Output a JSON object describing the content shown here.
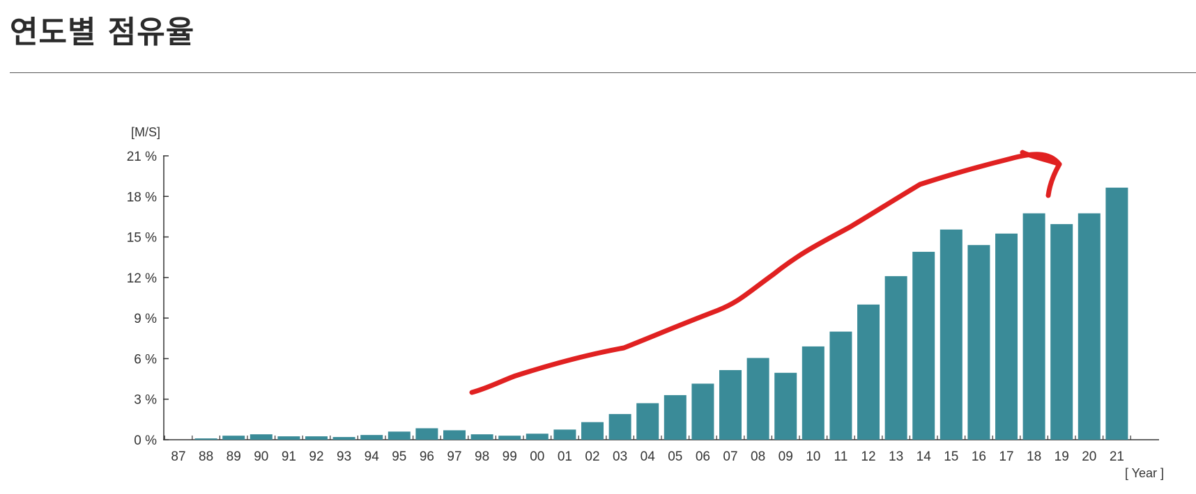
{
  "page": {
    "title": "연도별 점유율"
  },
  "chart_data": {
    "type": "bar",
    "title": "",
    "ylabel": "[M/S]",
    "xlabel": "[ Year ]",
    "ylim": [
      0,
      21
    ],
    "y_ticks": [
      "0 %",
      "3 %",
      "6 %",
      "9 %",
      "12 %",
      "15 %",
      "18 %",
      "21 %"
    ],
    "y_tick_values": [
      0,
      3,
      6,
      9,
      12,
      15,
      18,
      21
    ],
    "categories": [
      "87",
      "88",
      "89",
      "90",
      "91",
      "92",
      "93",
      "94",
      "95",
      "96",
      "97",
      "98",
      "99",
      "00",
      "01",
      "02",
      "03",
      "04",
      "05",
      "06",
      "07",
      "08",
      "09",
      "10",
      "11",
      "12",
      "13",
      "14",
      "15",
      "16",
      "17",
      "18",
      "19",
      "20",
      "21"
    ],
    "values": [
      0,
      0.1,
      0.3,
      0.4,
      0.25,
      0.25,
      0.2,
      0.35,
      0.6,
      0.85,
      0.7,
      0.4,
      0.3,
      0.45,
      0.75,
      1.3,
      1.9,
      2.7,
      3.3,
      4.15,
      5.15,
      6.05,
      4.95,
      6.9,
      8.0,
      10.0,
      12.1,
      13.9,
      15.55,
      14.4,
      15.25,
      16.75,
      15.95,
      16.75,
      18.65
    ],
    "bar_color": "#3a8b98",
    "annotation": {
      "type": "freehand-arrow",
      "color": "#e02121",
      "meaning": "upward trend"
    }
  }
}
